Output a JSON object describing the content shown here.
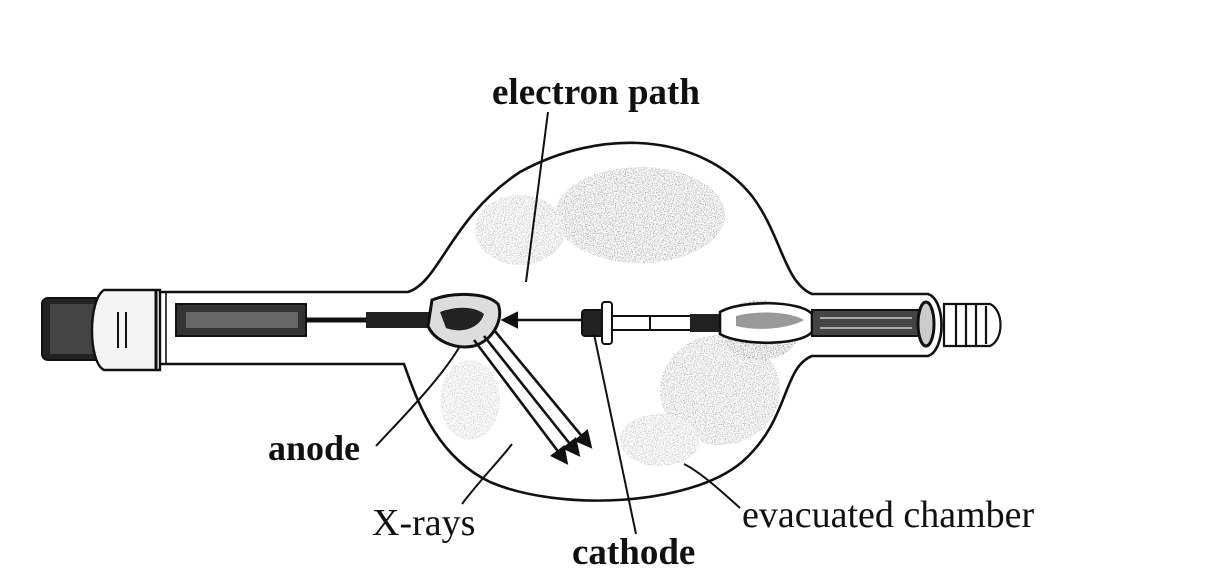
{
  "labels": {
    "electron_path": "electron path",
    "anode": "anode",
    "xrays": "X-rays",
    "cathode": "cathode",
    "evacuated_chamber": "evacuated chamber"
  },
  "colors": {
    "ink": "#111111",
    "background": "#ffffff"
  }
}
